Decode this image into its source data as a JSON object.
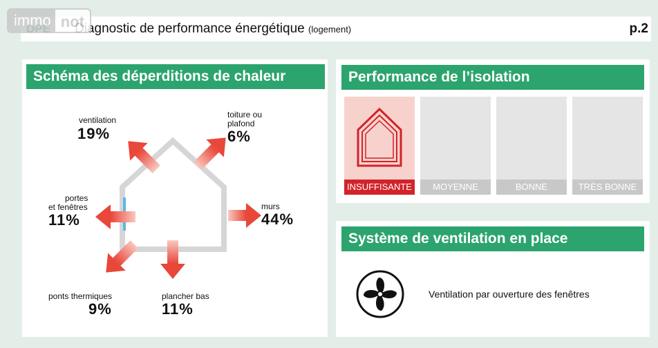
{
  "watermark": {
    "part1": "immo",
    "part2": "not"
  },
  "header": {
    "tag": "DPE",
    "title": "Diagnostic de performance énergétique",
    "title_note": "(logement)",
    "page": "p.2"
  },
  "heat_loss": {
    "title": "Schéma des déperditions de chaleur",
    "items": {
      "ventilation": {
        "label": "ventilation",
        "value": "19%"
      },
      "toiture": {
        "label_line1": "toiture ou",
        "label_line2": "plafond",
        "value": "6%"
      },
      "portes": {
        "label_line1": "portes",
        "label_line2": "et fenêtres",
        "value": "11%"
      },
      "murs": {
        "label": "murs",
        "value": "44%"
      },
      "ponts": {
        "label": "ponts thermiques",
        "value": "9%"
      },
      "plancher": {
        "label": "plancher bas",
        "value": "11%"
      }
    }
  },
  "insulation": {
    "title": "Performance de l’isolation",
    "levels": [
      "INSUFFISANTE",
      "MOYENNE",
      "BONNE",
      "TRÈS BONNE"
    ],
    "active_level": "INSUFFISANTE",
    "colors": {
      "active_bg": "#f7d2cc",
      "active_label": "#d2232a",
      "inactive": "#e5e5e5"
    }
  },
  "ventilation_system": {
    "title": "Système de ventilation en place",
    "icon": "fan-icon",
    "text": "Ventilation par ouverture des fenêtres"
  },
  "colors": {
    "accent": "#2ca46e",
    "arrow": "#e8473a",
    "background": "#e3eee8"
  }
}
